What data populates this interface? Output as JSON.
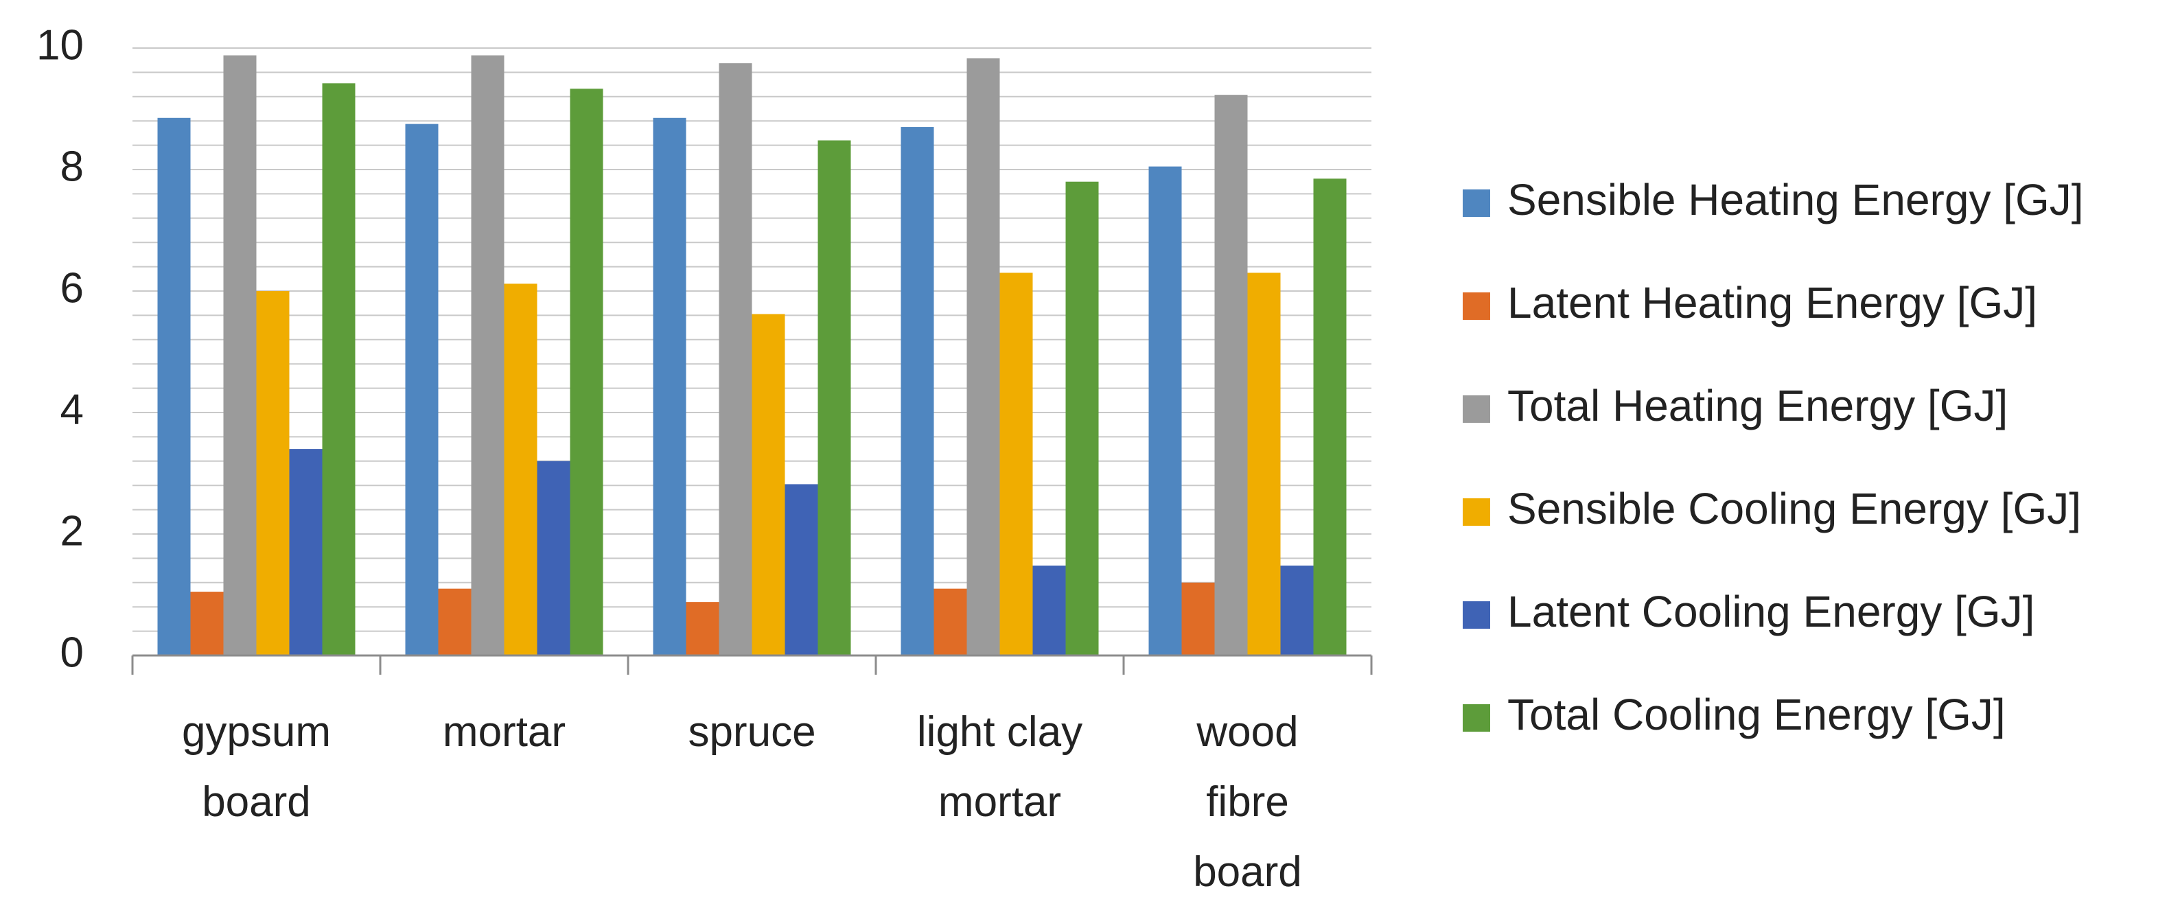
{
  "chart_data": {
    "type": "bar",
    "categories": [
      [
        "gypsum",
        "board"
      ],
      [
        "mortar"
      ],
      [
        "spruce"
      ],
      [
        "light clay",
        "mortar"
      ],
      [
        "wood",
        "fibre",
        "board"
      ]
    ],
    "series": [
      {
        "name": "Sensible Heating Energy [GJ]",
        "color": "#4f86c0",
        "values": [
          8.85,
          8.75,
          8.85,
          8.7,
          8.05
        ]
      },
      {
        "name": "Latent Heating Energy [GJ]",
        "color": "#e06c26",
        "values": [
          1.05,
          1.1,
          0.88,
          1.1,
          1.2
        ]
      },
      {
        "name": "Total Heating Energy [GJ]",
        "color": "#9b9b9b",
        "values": [
          9.88,
          9.88,
          9.75,
          9.83,
          9.23
        ]
      },
      {
        "name": "Sensible Cooling Energy [GJ]",
        "color": "#f0ad00",
        "values": [
          6.0,
          6.12,
          5.62,
          6.3,
          6.3
        ]
      },
      {
        "name": "Latent Cooling Energy [GJ]",
        "color": "#3f63b5",
        "values": [
          3.4,
          3.2,
          2.82,
          1.48,
          1.48
        ]
      },
      {
        "name": "Total Cooling Energy [GJ]",
        "color": "#5d9c3a",
        "values": [
          9.42,
          9.33,
          8.48,
          7.8,
          7.85
        ]
      }
    ],
    "y_ticks": [
      "0",
      "2",
      "4",
      "6",
      "8",
      "10"
    ],
    "ylim": [
      0,
      10
    ],
    "minor_grid_step": 0.4,
    "grid": true,
    "legend_position": "right",
    "title": "",
    "xlabel": "",
    "ylabel": ""
  }
}
